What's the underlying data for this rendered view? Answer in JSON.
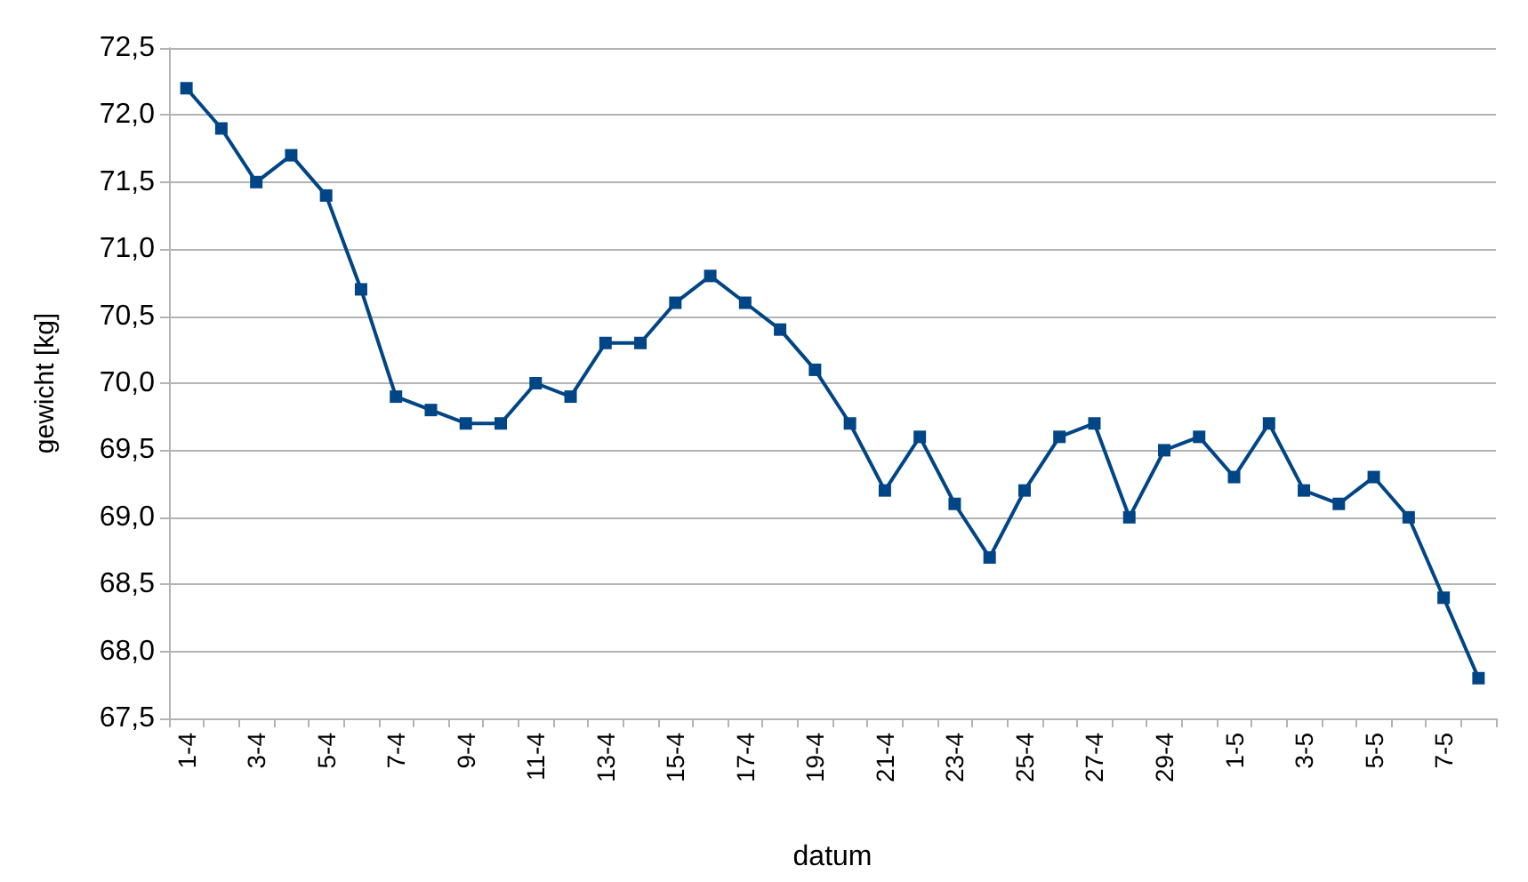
{
  "chart_data": {
    "type": "line",
    "xlabel": "datum",
    "ylabel": "gewicht [kg]",
    "categories": [
      "1-4",
      null,
      "3-4",
      null,
      "5-4",
      null,
      "7-4",
      null,
      "9-4",
      null,
      "11-4",
      null,
      "13-4",
      null,
      "15-4",
      null,
      "17-4",
      null,
      "19-4",
      null,
      "21-4",
      null,
      "23-4",
      null,
      "25-4",
      null,
      "27-4",
      null,
      "29-4",
      null,
      "1-5",
      null,
      "3-5",
      null,
      "5-5",
      null,
      "7-5",
      null
    ],
    "series": [
      {
        "color": "#004586",
        "values": [
          72.2,
          71.9,
          71.5,
          71.7,
          71.4,
          70.7,
          69.9,
          69.8,
          69.7,
          69.7,
          70.0,
          69.9,
          70.3,
          70.3,
          70.6,
          70.8,
          70.6,
          70.4,
          70.1,
          69.7,
          69.2,
          69.6,
          69.1,
          68.7,
          69.2,
          69.6,
          69.7,
          69.0,
          69.5,
          69.6,
          69.3,
          69.7,
          69.2,
          69.1,
          69.3,
          69.0,
          68.4,
          67.8
        ]
      }
    ],
    "ylim": [
      67.5,
      72.5
    ],
    "yticks": [
      {
        "value": 67.5,
        "label": "67,5"
      },
      {
        "value": 68,
        "label": "68,0"
      },
      {
        "value": 68.5,
        "label": "68,5"
      },
      {
        "value": 69,
        "label": "69,0"
      },
      {
        "value": 69.5,
        "label": "69,5"
      },
      {
        "value": 70,
        "label": "70,0"
      },
      {
        "value": 70.5,
        "label": "70,5"
      },
      {
        "value": 71,
        "label": "71,0"
      },
      {
        "value": 71.5,
        "label": "71,5"
      },
      {
        "value": 72,
        "label": "72,0"
      },
      {
        "value": 72.5,
        "label": "72,5"
      }
    ],
    "grid": "y",
    "marker": "square",
    "line_style": "solid"
  }
}
